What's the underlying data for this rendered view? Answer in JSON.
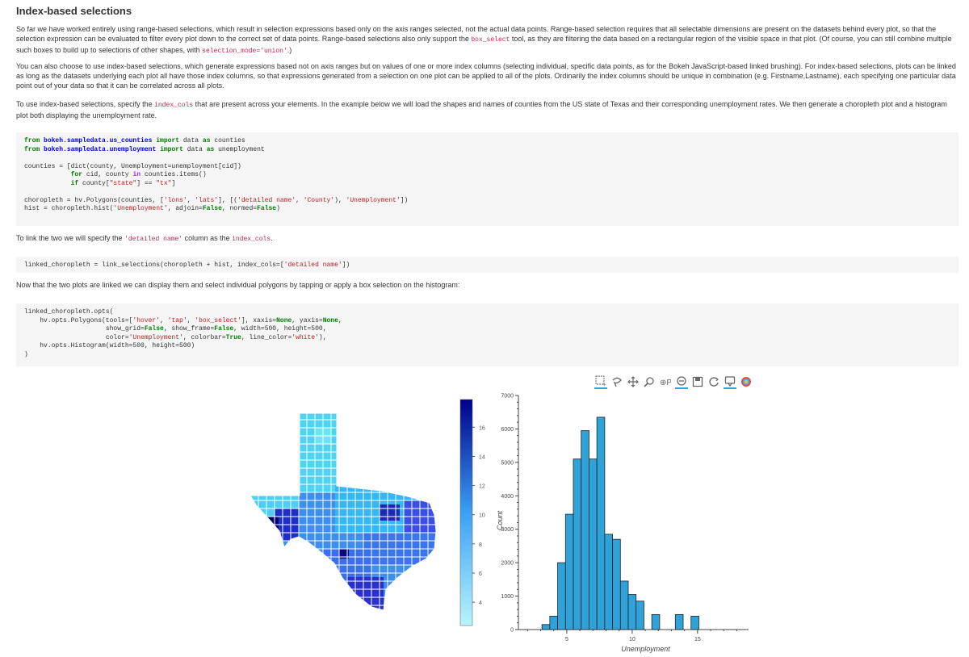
{
  "heading": "Index-based selections",
  "p1": {
    "text_a": "So far we have worked entirely using range-based selections, which result in selection expressions based only on the axis ranges selected, not the actual data points. Range-based selection requires that all selectable dimensions are present on the datasets behind every plot, so that the selection expression can be evaluated to filter every plot down to the correct set of data points. Range-based selections also only support the ",
    "code_a": "box_select",
    "text_b": " tool, as they are filtering the data based on a rectangular region of the visible space in that plot. (Of course, you can still combine multiple such boxes to build up to selections of other shapes, with ",
    "code_b": "selection_mode='union'",
    "text_c": ".)"
  },
  "p2": "You can also choose to use index-based selections, which generate expressions based not on axis ranges but on values of one or more index columns (selecting individual, specific data points, as for the Bokeh JavaScript-based linked brushing). For index-based selections, plots can be linked as long as the datasets underlying each plot all have those index columns, so that expressions generated from a selection on one plot can be applied to all of the plots. Ordinarily the index columns should be unique in combination (e.g. Firstname,Lastname), each specifying one particular data point out of your data so that it can be correlated across all plots.",
  "p3": {
    "text_a": "To use index-based selections, specify the ",
    "code_a": "index_cols",
    "text_b": " that are present across your elements. In the example below we will load the shapes and names of counties from the US state of Texas and their corresponding unemployment rates. We then generate a choropleth plot and a histogram plot both displaying the unemployment rate."
  },
  "p4": {
    "text_a": "To link the two we will specify the ",
    "code_a": "'detailed name'",
    "text_b": " column as the ",
    "code_b": "index_cols",
    "text_c": "."
  },
  "p5": "Now that the two plots are linked we can display them and select individual polygons by tapping or apply a box selection on the histogram:",
  "code1": {
    "l1_kw1": "from",
    "l1_mod": "bokeh.sampledata.us_counties",
    "l1_kw2": "import",
    "l1_rest": "data",
    "l1_kw3": "as",
    "l1_name": "counties",
    "l2_kw1": "from",
    "l2_mod": "bokeh.sampledata.unemployment",
    "l2_kw2": "import",
    "l2_rest": "data",
    "l2_kw3": "as",
    "l2_name": "unemployment",
    "l3": "counties = [dict(county, Unemployment=unemployment[cid])",
    "l4_a": "            ",
    "l4_kw": "for",
    "l4_b": " cid, county ",
    "l4_in": "in",
    "l4_c": " counties.items()",
    "l5_a": "            ",
    "l5_kw": "if",
    "l5_b": " county[",
    "l5_s1": "\"state\"",
    "l5_c": "] == ",
    "l5_s2": "\"tx\"",
    "l5_d": "]",
    "l6_a": "choropleth = hv.Polygons(counties, [",
    "l6_s1": "'lons'",
    "l6_b": ", ",
    "l6_s2": "'lats'",
    "l6_c": "], [(",
    "l6_s3": "'detailed name'",
    "l6_d": ", ",
    "l6_s4": "'County'",
    "l6_e": "), ",
    "l6_s5": "'Unemployment'",
    "l6_f": "])",
    "l7_a": "hist = choropleth.hist(",
    "l7_s1": "'Unemployment'",
    "l7_b": ", adjoin=",
    "l7_k1": "False",
    "l7_c": ", normed=",
    "l7_k2": "False",
    "l7_d": ")"
  },
  "code2": {
    "a": "linked_choropleth = link_selections(choropleth + hist, index_cols=[",
    "s": "'detailed name'",
    "b": "])"
  },
  "code3": {
    "l1": "linked_choropleth.opts(",
    "l2_a": "    hv.opts.Polygons(tools=[",
    "l2_s1": "'hover'",
    "l2_b": ", ",
    "l2_s2": "'tap'",
    "l2_c": ", ",
    "l2_s3": "'box_select'",
    "l2_d": "], xaxis=",
    "l2_k1": "None",
    "l2_e": ", yaxis=",
    "l2_k2": "None",
    "l2_f": ",",
    "l3_a": "                     show_grid=",
    "l3_k1": "False",
    "l3_b": ", show_frame=",
    "l3_k2": "False",
    "l3_c": ", width=500, height=500,",
    "l4_a": "                     color=",
    "l4_s1": "'Unemployment'",
    "l4_b": ", colorbar=",
    "l4_k1": "True",
    "l4_c": ", line_color=",
    "l4_s2": "'white'",
    "l4_d": "),",
    "l5": "    hv.opts.Histogram(width=500, height=500)",
    "l6": ")"
  },
  "toolbar": [
    "box-zoom-icon",
    "lasso-icon",
    "pan-icon",
    "wheel-zoom-icon",
    "box-select-icon",
    "zoom-in-icon",
    "save-icon",
    "reset-icon",
    "hover-icon",
    "bokeh-logo-icon"
  ],
  "colorbar": {
    "ticks": [
      "4",
      "6",
      "8",
      "10",
      "12",
      "14",
      "16"
    ],
    "colors": {
      "low": "#b9f5fb",
      "high": "#00008b"
    }
  },
  "chart_data": {
    "type": "bar",
    "xlabel": "Unemployment",
    "ylabel": "Count",
    "ylim": [
      0,
      7000
    ],
    "xlim": [
      1.3,
      18.9
    ],
    "yticks": [
      "0",
      "1000",
      "2000",
      "3000",
      "4000",
      "5000",
      "6000",
      "7000"
    ],
    "xticks": [
      "5",
      "10",
      "15"
    ],
    "bar_color": "#30a2da",
    "bins": [
      {
        "x0": 3.1,
        "x1": 3.7,
        "y": 150
      },
      {
        "x0": 3.7,
        "x1": 4.3,
        "y": 400
      },
      {
        "x0": 4.3,
        "x1": 4.9,
        "y": 2000
      },
      {
        "x0": 4.9,
        "x1": 5.5,
        "y": 3450
      },
      {
        "x0": 5.5,
        "x1": 6.1,
        "y": 5100
      },
      {
        "x0": 6.1,
        "x1": 6.7,
        "y": 5950
      },
      {
        "x0": 6.7,
        "x1": 7.3,
        "y": 5100
      },
      {
        "x0": 7.3,
        "x1": 7.9,
        "y": 6350
      },
      {
        "x0": 7.9,
        "x1": 8.5,
        "y": 2850
      },
      {
        "x0": 8.5,
        "x1": 9.1,
        "y": 2700
      },
      {
        "x0": 9.1,
        "x1": 9.7,
        "y": 1450
      },
      {
        "x0": 9.7,
        "x1": 10.3,
        "y": 1050
      },
      {
        "x0": 10.3,
        "x1": 10.9,
        "y": 850
      },
      {
        "x0": 11.5,
        "x1": 12.1,
        "y": 450
      },
      {
        "x0": 13.3,
        "x1": 13.9,
        "y": 450
      },
      {
        "x0": 14.5,
        "x1": 15.1,
        "y": 400
      }
    ]
  }
}
